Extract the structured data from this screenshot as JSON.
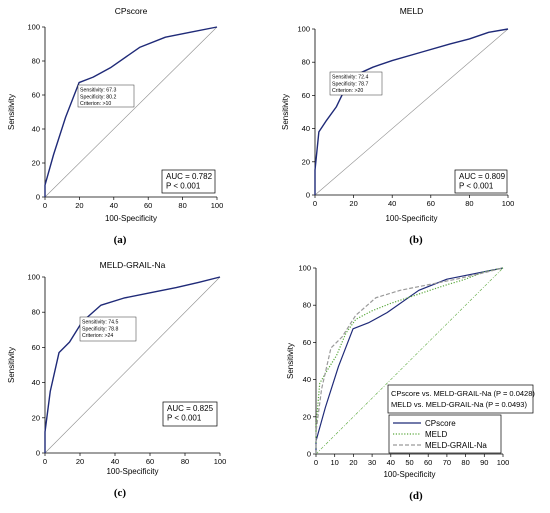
{
  "chart_data": [
    {
      "type": "line",
      "panel": "(a)",
      "title": "CPscore",
      "xlabel": "100-Specificity",
      "ylabel": "Sensitivity",
      "xlim": [
        0,
        100
      ],
      "ylim": [
        0,
        100
      ],
      "xticks": [
        "0",
        "20",
        "40",
        "60",
        "80",
        "100"
      ],
      "yticks": [
        "0",
        "20",
        "40",
        "60",
        "80",
        "100"
      ],
      "series": [
        {
          "values": [
            [
              0,
              0
            ],
            [
              0,
              7
            ],
            [
              5,
              25
            ],
            [
              12,
              47
            ],
            [
              19.8,
              67.3
            ],
            [
              28,
              70.5
            ],
            [
              38,
              76
            ],
            [
              55,
              88
            ],
            [
              70,
              94
            ],
            [
              85,
              97
            ],
            [
              100,
              100
            ]
          ],
          "color": "#1f2a78"
        }
      ],
      "reference_line": true,
      "criterion_box": {
        "lines": [
          "Sensitivity: 67.3",
          "Specificity: 80.2",
          "Criterion: >10"
        ],
        "point": [
          19.8,
          67.3
        ]
      },
      "auc_box": {
        "lines": [
          "AUC = 0.782",
          "P < 0.001"
        ]
      }
    },
    {
      "type": "line",
      "panel": "(b)",
      "title": "MELD",
      "xlabel": "100-Specificity",
      "ylabel": "Sensitivity",
      "xlim": [
        0,
        100
      ],
      "ylim": [
        0,
        100
      ],
      "xticks": [
        "0",
        "20",
        "40",
        "60",
        "80",
        "100"
      ],
      "yticks": [
        "0",
        "20",
        "40",
        "60",
        "80",
        "100"
      ],
      "series": [
        {
          "values": [
            [
              0,
              0
            ],
            [
              0,
              15
            ],
            [
              2,
              38
            ],
            [
              6,
              45
            ],
            [
              11,
              53
            ],
            [
              16,
              65
            ],
            [
              21.3,
              72.4
            ],
            [
              30,
              77
            ],
            [
              40,
              81
            ],
            [
              55,
              86
            ],
            [
              70,
              91
            ],
            [
              80,
              94
            ],
            [
              90,
              98
            ],
            [
              100,
              100
            ]
          ],
          "color": "#1f2a78"
        }
      ],
      "reference_line": true,
      "criterion_box": {
        "lines": [
          "Sensitivity: 72.4",
          "Specificity: 78.7",
          "Criterion: >20"
        ],
        "point": [
          21.3,
          72.4
        ]
      },
      "auc_box": {
        "lines": [
          "AUC = 0.809",
          "P < 0.001"
        ]
      }
    },
    {
      "type": "line",
      "panel": "(c)",
      "title": "MELD-GRAIL-Na",
      "xlabel": "100-Specificity",
      "ylabel": "Sensitivity",
      "xlim": [
        0,
        100
      ],
      "ylim": [
        0,
        100
      ],
      "xticks": [
        "0",
        "20",
        "40",
        "60",
        "80",
        "100"
      ],
      "yticks": [
        "0",
        "20",
        "40",
        "60",
        "80",
        "100"
      ],
      "series": [
        {
          "values": [
            [
              0,
              0
            ],
            [
              0,
              12
            ],
            [
              3,
              35
            ],
            [
              8,
              57
            ],
            [
              14,
              63
            ],
            [
              21.2,
              74.5
            ],
            [
              32,
              84
            ],
            [
              45,
              88
            ],
            [
              60,
              91
            ],
            [
              75,
              94
            ],
            [
              88,
              97
            ],
            [
              100,
              100
            ]
          ],
          "color": "#1f2a78"
        }
      ],
      "reference_line": true,
      "criterion_box": {
        "lines": [
          "Sensitivity: 74.5",
          "Specificity: 78.8",
          "Criterion: >24"
        ],
        "point": [
          21.2,
          74.5
        ]
      },
      "auc_box": {
        "lines": [
          "AUC = 0.825",
          "P < 0.001"
        ]
      }
    },
    {
      "type": "line",
      "panel": "(d)",
      "xlabel": "100-Specificity",
      "ylabel": "Sensitivity",
      "xlim": [
        0,
        100
      ],
      "ylim": [
        0,
        100
      ],
      "xticks": [
        "0",
        "10",
        "20",
        "30",
        "40",
        "50",
        "60",
        "70",
        "80",
        "90",
        "100"
      ],
      "yticks": [
        "0",
        "20",
        "40",
        "60",
        "80",
        "100"
      ],
      "series": [
        {
          "name": "CPscore",
          "values": [
            [
              0,
              0
            ],
            [
              0,
              7
            ],
            [
              5,
              25
            ],
            [
              12,
              47
            ],
            [
              19.8,
              67.3
            ],
            [
              28,
              70.5
            ],
            [
              38,
              76
            ],
            [
              55,
              88
            ],
            [
              70,
              94
            ],
            [
              85,
              97
            ],
            [
              100,
              100
            ]
          ],
          "color": "#1f2a78",
          "style": "solid"
        },
        {
          "name": "MELD",
          "values": [
            [
              0,
              0
            ],
            [
              0,
              15
            ],
            [
              2,
              38
            ],
            [
              6,
              45
            ],
            [
              11,
              53
            ],
            [
              16,
              65
            ],
            [
              21.3,
              72.4
            ],
            [
              30,
              77
            ],
            [
              40,
              81
            ],
            [
              55,
              86
            ],
            [
              70,
              91
            ],
            [
              80,
              94
            ],
            [
              90,
              98
            ],
            [
              100,
              100
            ]
          ],
          "color": "#5aa83c",
          "style": "dotted"
        },
        {
          "name": "MELD-GRAIL-Na",
          "values": [
            [
              0,
              0
            ],
            [
              0,
              12
            ],
            [
              3,
              35
            ],
            [
              8,
              57
            ],
            [
              14,
              63
            ],
            [
              21.2,
              74.5
            ],
            [
              32,
              84
            ],
            [
              45,
              88
            ],
            [
              60,
              91
            ],
            [
              75,
              94
            ],
            [
              88,
              97
            ],
            [
              100,
              100
            ]
          ],
          "color": "#9a9a9a",
          "style": "dashed"
        }
      ],
      "reference_line": true,
      "comparison_box": {
        "lines": [
          "CPscore vs. MELD-GRAIL-Na (P = 0.0428)",
          "MELD    vs. MELD-GRAIL-Na (P = 0.0493)"
        ]
      },
      "legend": "bottom-right"
    }
  ]
}
